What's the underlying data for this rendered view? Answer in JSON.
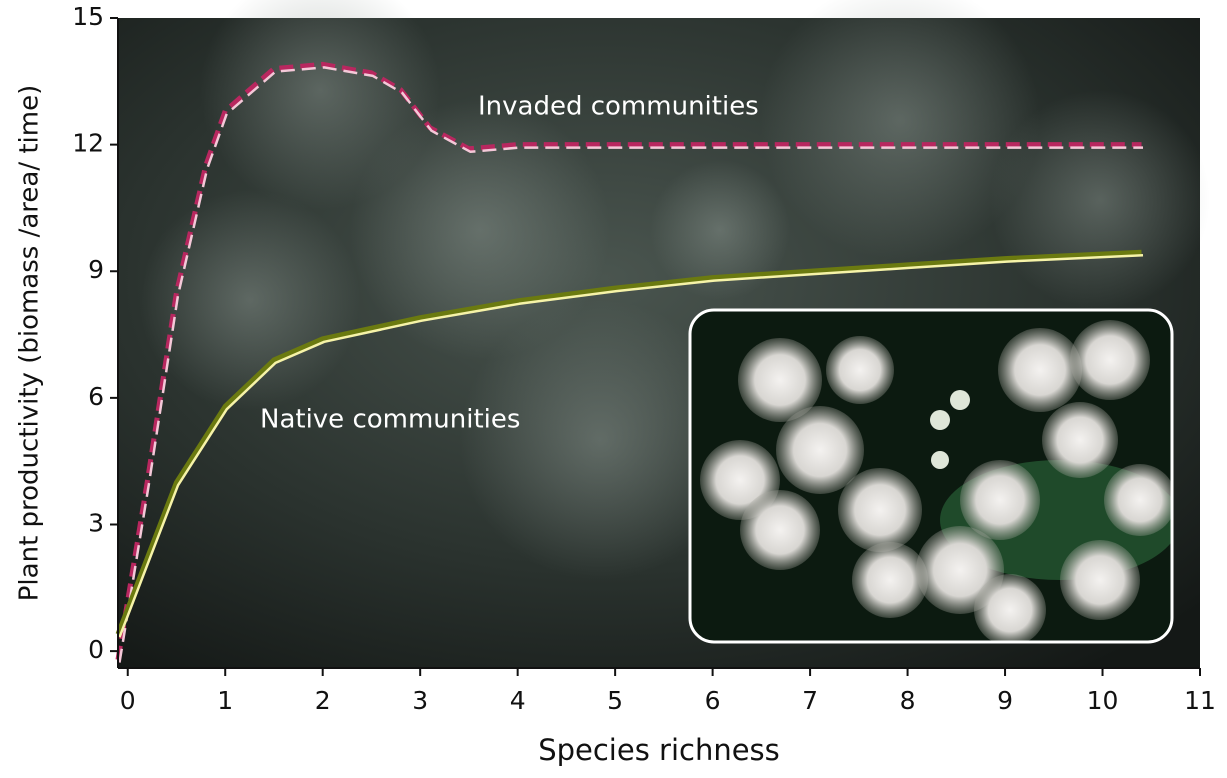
{
  "chart_data": {
    "type": "line",
    "x_label": "Species richness",
    "y_label": "Plant productivity (biomass /area/ time)",
    "xlim": [
      -0.1,
      11
    ],
    "ylim": [
      -0.4,
      15
    ],
    "xticks": [
      0,
      1,
      2,
      3,
      4,
      5,
      6,
      7,
      8,
      9,
      10,
      11
    ],
    "yticks": [
      0,
      3,
      6,
      9,
      12,
      15
    ],
    "series": [
      {
        "name": "Invaded communities",
        "color": "#b8275f",
        "highlight": "#f4c8d8",
        "dashed": true,
        "x": [
          -0.1,
          0.2,
          0.5,
          0.8,
          1,
          1.5,
          2,
          2.5,
          2.8,
          3.1,
          3.5,
          4,
          5,
          7,
          10.4
        ],
        "values": [
          -0.2,
          4,
          8.5,
          11.5,
          12.8,
          13.8,
          13.9,
          13.7,
          13.3,
          12.4,
          11.9,
          12,
          12,
          12,
          12
        ]
      },
      {
        "name": "Native communities",
        "color": "#6b7a10",
        "highlight": "#f6f3a8",
        "dashed": false,
        "x": [
          -0.1,
          0.25,
          0.5,
          1,
          1.5,
          2,
          3,
          4,
          5,
          6,
          7,
          8,
          9,
          10.4
        ],
        "values": [
          0.4,
          2.5,
          4,
          5.8,
          6.9,
          7.4,
          7.9,
          8.3,
          8.6,
          8.85,
          9,
          9.15,
          9.3,
          9.45
        ]
      }
    ]
  }
}
